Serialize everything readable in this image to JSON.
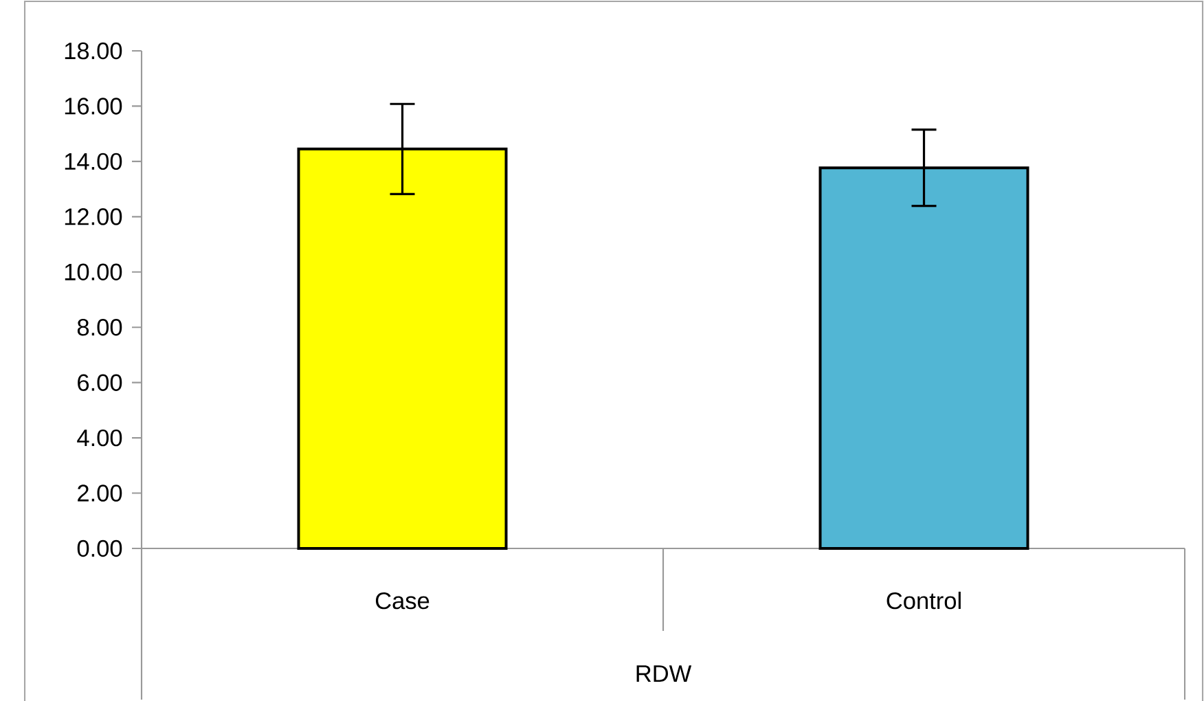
{
  "chart_data": {
    "type": "bar",
    "xlabel": "RDW",
    "categories": [
      "Case",
      "Control"
    ],
    "values": [
      14.45,
      13.77
    ],
    "errors": [
      1.63,
      1.38
    ],
    "colors": [
      "#ffff00",
      "#52b6d4"
    ],
    "ylim": [
      0,
      18
    ],
    "yticks": [
      {
        "value": 0,
        "label": "0.00"
      },
      {
        "value": 2,
        "label": "2.00"
      },
      {
        "value": 4,
        "label": "4.00"
      },
      {
        "value": 6,
        "label": "6.00"
      },
      {
        "value": 8,
        "label": "8.00"
      },
      {
        "value": 10,
        "label": "10.00"
      },
      {
        "value": 12,
        "label": "12.00"
      },
      {
        "value": 14,
        "label": "14.00"
      },
      {
        "value": 16,
        "label": "16.00"
      },
      {
        "value": 18,
        "label": "18.00"
      }
    ]
  }
}
